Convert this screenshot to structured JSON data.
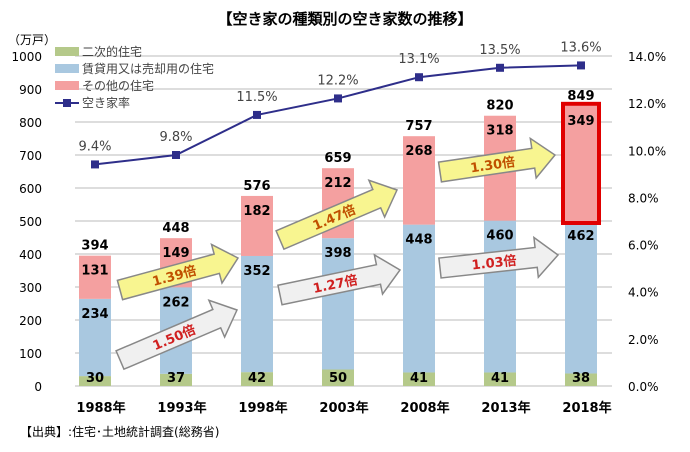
{
  "chart_data": {
    "type": "bar",
    "title": "【空き家の種類別の空き家数の推移】",
    "ylabel": "（万戸）",
    "ylim": [
      0,
      1000
    ],
    "y2lim": [
      0,
      14
    ],
    "yticks": [
      "0",
      "100",
      "200",
      "300",
      "400",
      "500",
      "600",
      "700",
      "800",
      "900",
      "1000"
    ],
    "y2ticks": [
      "0.0%",
      "2.0%",
      "4.0%",
      "6.0%",
      "8.0%",
      "10.0%",
      "12.0%",
      "14.0%"
    ],
    "grid": true,
    "legend": "top-left",
    "categories": [
      "1988年",
      "1993年",
      "1998年",
      "2003年",
      "2008年",
      "2013年",
      "2018年"
    ],
    "series": [
      {
        "name": "二次的住宅",
        "type": "bar",
        "color": "#b5c98a",
        "values": [
          30,
          37,
          42,
          50,
          41,
          41,
          38
        ]
      },
      {
        "name": "賃貸用又は売却用の住宅",
        "type": "bar",
        "color": "#a9c8e0",
        "values": [
          234,
          262,
          352,
          398,
          448,
          460,
          462
        ]
      },
      {
        "name": "その他の住宅",
        "type": "bar",
        "color": "#f4a0a0",
        "values": [
          131,
          149,
          182,
          212,
          268,
          318,
          349
        ]
      },
      {
        "name": "空き家率",
        "type": "line",
        "axis": "right",
        "color": "#2e2e8a",
        "values": [
          9.4,
          9.8,
          11.5,
          12.2,
          13.1,
          13.5,
          13.6
        ],
        "labels": [
          "9.4%",
          "9.8%",
          "11.5%",
          "12.2%",
          "13.1%",
          "13.5%",
          "13.6%"
        ]
      }
    ],
    "totals": [
      394,
      448,
      576,
      659,
      757,
      820,
      849
    ],
    "annotations": [
      {
        "label": "1.50倍",
        "style": "white",
        "from": "1988年",
        "to": "1998年",
        "series": "賃貸用又は売却用の住宅"
      },
      {
        "label": "1.39倍",
        "style": "yellow",
        "from": "1988年",
        "to": "1998年",
        "series": "その他の住宅"
      },
      {
        "label": "1.27倍",
        "style": "white",
        "from": "1998年",
        "to": "2008年",
        "series": "賃貸用又は売却用の住宅"
      },
      {
        "label": "1.47倍",
        "style": "yellow",
        "from": "1998年",
        "to": "2008年",
        "series": "その他の住宅"
      },
      {
        "label": "1.03倍",
        "style": "white",
        "from": "2008年",
        "to": "2018年",
        "series": "賃貸用又は売却用の住宅"
      },
      {
        "label": "1.30倍",
        "style": "yellow",
        "from": "2008年",
        "to": "2018年",
        "series": "その他の住宅"
      }
    ],
    "highlight": {
      "category": "2018年",
      "series": "その他の住宅",
      "color": "#e00000"
    },
    "source": "【出典】:住宅･土地統計調査(総務省)"
  }
}
